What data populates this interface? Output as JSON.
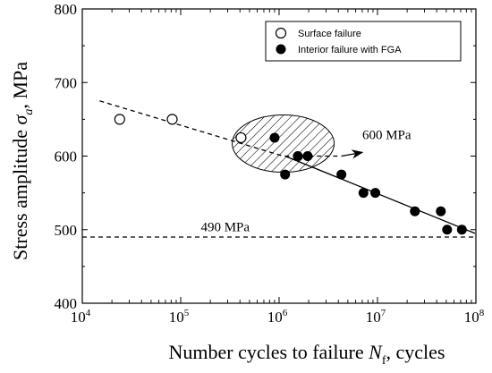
{
  "chart_data": {
    "type": "scatter",
    "x_scale": "log",
    "xlim": [
      10000,
      100000000
    ],
    "ylim": [
      400,
      800
    ],
    "x_ticks": [
      {
        "base": "10",
        "exp": "4",
        "value": 10000
      },
      {
        "base": "10",
        "exp": "5",
        "value": 100000
      },
      {
        "base": "10",
        "exp": "6",
        "value": 1000000
      },
      {
        "base": "10",
        "exp": "7",
        "value": 10000000
      },
      {
        "base": "10",
        "exp": "8",
        "value": 100000000
      }
    ],
    "y_ticks": [
      400,
      500,
      600,
      700,
      800
    ],
    "xlabel": {
      "main": "Number cycles to failure ",
      "symbol": "N",
      "sub": "f",
      "tail": ", cycles"
    },
    "ylabel": {
      "main": "Stress amplitude ",
      "symbol": "σ",
      "sub": "a",
      "tail": ", MPa"
    },
    "series": [
      {
        "name": "Surface failure",
        "marker": "open-circle",
        "points": [
          {
            "x": 24000,
            "y": 650
          },
          {
            "x": 82000,
            "y": 650
          },
          {
            "x": 410000,
            "y": 625
          }
        ]
      },
      {
        "name": "Interior failure with FGA",
        "marker": "filled-circle",
        "points": [
          {
            "x": 900000,
            "y": 625
          },
          {
            "x": 1150000,
            "y": 575
          },
          {
            "x": 1550000,
            "y": 600
          },
          {
            "x": 1950000,
            "y": 600
          },
          {
            "x": 4300000,
            "y": 575
          },
          {
            "x": 7200000,
            "y": 550
          },
          {
            "x": 9500000,
            "y": 550
          },
          {
            "x": 24000000,
            "y": 525
          },
          {
            "x": 44000000,
            "y": 525
          },
          {
            "x": 51000000,
            "y": 500
          },
          {
            "x": 72000000,
            "y": 500
          }
        ]
      }
    ],
    "fit_lines": [
      {
        "style": "dashed",
        "points": [
          {
            "x": 15000,
            "y": 675
          },
          {
            "x": 1100000,
            "y": 600
          },
          {
            "x": 4300000,
            "y": 600
          }
        ]
      },
      {
        "style": "solid",
        "points": [
          {
            "x": 1150000,
            "y": 600
          },
          {
            "x": 98000000,
            "y": 495
          }
        ]
      },
      {
        "style": "dashed",
        "points": [
          {
            "x": 10000,
            "y": 490
          },
          {
            "x": 100000000,
            "y": 490
          }
        ]
      }
    ],
    "annotations": [
      {
        "text": "600 MPa",
        "x": 7000000,
        "y": 623
      },
      {
        "text": "490 MPa",
        "x": 160000,
        "y": 498
      }
    ],
    "ellipse_region": {
      "cx_value": 1100000,
      "cy_value": 617,
      "fill": "hatched"
    },
    "arrow": {
      "from": {
        "x": 4300000,
        "y": 600
      },
      "to": {
        "x": 7000000,
        "y": 605
      }
    },
    "legend_placement": "top-right",
    "grid": false
  }
}
